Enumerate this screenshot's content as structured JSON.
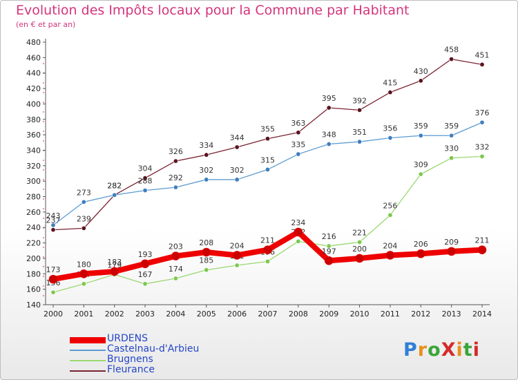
{
  "header": {
    "title": "Evolution des Impôts locaux pour la Commune par Habitant",
    "subtitle": "(en € et par an)"
  },
  "logo": {
    "text": "ProXiti",
    "colors": [
      "#2e7fd8",
      "#e8901c",
      "#3aa53a",
      "#d42a2a"
    ]
  },
  "chart_data": {
    "type": "line",
    "title": "Evolution des Impôts locaux pour la Commune par Habitant",
    "subtitle": "(en € et par an)",
    "x": [
      2000,
      2001,
      2002,
      2003,
      2004,
      2005,
      2006,
      2007,
      2008,
      2009,
      2010,
      2011,
      2012,
      2013,
      2014
    ],
    "ylim": [
      140,
      480
    ],
    "yticks": [
      140,
      160,
      180,
      200,
      220,
      240,
      260,
      280,
      300,
      320,
      340,
      360,
      380,
      400,
      420,
      440,
      460,
      480
    ],
    "grid": false,
    "legend": "bottom-left",
    "series": [
      {
        "name": "Fleurance",
        "color": "#7a2230",
        "marker": "#5a1420",
        "width": 1.3,
        "values": [
          237,
          239,
          282,
          304,
          326,
          334,
          344,
          355,
          363,
          395,
          392,
          415,
          430,
          458,
          451
        ]
      },
      {
        "name": "Castelnau-d'Arbieu",
        "color": "#5b9bd0",
        "marker": "#3f7fbf",
        "width": 1.3,
        "values": [
          243,
          273,
          282,
          288,
          292,
          302,
          302,
          315,
          335,
          348,
          351,
          356,
          359,
          359,
          376
        ]
      },
      {
        "name": "Brugnens",
        "color": "#9ad870",
        "marker": "#7cc84e",
        "width": 1.3,
        "values": [
          156,
          167,
          179,
          167,
          174,
          185,
          191,
          196,
          222,
          216,
          221,
          256,
          309,
          330,
          332
        ]
      },
      {
        "name": "URDENS",
        "color": "#ee0000",
        "marker": "#cc0000",
        "width": 8,
        "values": [
          173,
          180,
          183,
          193,
          203,
          208,
          204,
          211,
          234,
          197,
          200,
          204,
          206,
          209,
          211
        ]
      }
    ],
    "legend_order": [
      "URDENS",
      "Castelnau-d'Arbieu",
      "Brugnens",
      "Fleurance"
    ]
  }
}
